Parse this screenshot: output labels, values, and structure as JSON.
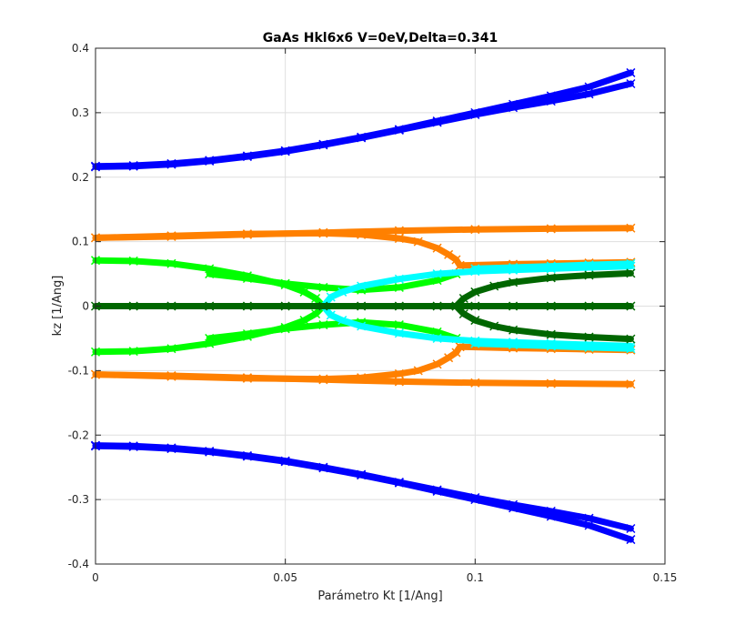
{
  "chart_data": {
    "type": "scatter",
    "title": "GaAs Hkl6x6 V=0eV,Delta=0.341",
    "xlabel": "Parámetro Kt [1/Ang]",
    "ylabel": "kz [1/Ang]",
    "xlim": [
      0,
      0.15
    ],
    "ylim": [
      -0.4,
      0.4
    ],
    "xticks": [
      0,
      0.05,
      0.1,
      0.15
    ],
    "xtick_labels": [
      "0",
      "0.05",
      "0.1",
      "0.15"
    ],
    "yticks": [
      -0.4,
      -0.3,
      -0.2,
      -0.1,
      0,
      0.1,
      0.2,
      0.3,
      0.4
    ],
    "ytick_labels": [
      "-0.4",
      "-0.3",
      "-0.2",
      "-0.1",
      "0",
      "0.1",
      "0.2",
      "0.3",
      "0.4"
    ],
    "grid": true,
    "marker": "x",
    "series": [
      {
        "color": "#0000ff",
        "x": [
          0,
          0.01,
          0.02,
          0.03,
          0.04,
          0.05,
          0.06,
          0.07,
          0.08,
          0.09,
          0.1,
          0.11,
          0.12,
          0.13,
          0.141
        ],
        "y": [
          0.217,
          0.218,
          0.221,
          0.226,
          0.233,
          0.241,
          0.251,
          0.262,
          0.274,
          0.287,
          0.3,
          0.313,
          0.326,
          0.34,
          0.362
        ]
      },
      {
        "color": "#0000ff",
        "x": [
          0,
          0.01,
          0.02,
          0.03,
          0.04,
          0.05,
          0.06,
          0.07,
          0.08,
          0.09,
          0.1,
          0.11,
          0.12,
          0.13,
          0.141
        ],
        "y": [
          0.216,
          0.217,
          0.22,
          0.225,
          0.232,
          0.24,
          0.25,
          0.261,
          0.273,
          0.285,
          0.297,
          0.308,
          0.318,
          0.329,
          0.345
        ]
      },
      {
        "color": "#0000ff",
        "x": [
          0,
          0.01,
          0.02,
          0.03,
          0.04,
          0.05,
          0.06,
          0.07,
          0.08,
          0.09,
          0.1,
          0.11,
          0.12,
          0.13,
          0.141
        ],
        "y": [
          -0.216,
          -0.217,
          -0.22,
          -0.225,
          -0.232,
          -0.24,
          -0.25,
          -0.261,
          -0.273,
          -0.285,
          -0.297,
          -0.308,
          -0.318,
          -0.329,
          -0.345
        ]
      },
      {
        "color": "#0000ff",
        "x": [
          0,
          0.01,
          0.02,
          0.03,
          0.04,
          0.05,
          0.06,
          0.07,
          0.08,
          0.09,
          0.1,
          0.11,
          0.12,
          0.13,
          0.141
        ],
        "y": [
          -0.217,
          -0.218,
          -0.221,
          -0.226,
          -0.233,
          -0.241,
          -0.251,
          -0.262,
          -0.274,
          -0.287,
          -0.3,
          -0.313,
          -0.326,
          -0.34,
          -0.362
        ]
      },
      {
        "color": "#ff8000",
        "x": [
          0,
          0.02,
          0.04,
          0.06,
          0.08,
          0.1,
          0.12,
          0.141
        ],
        "y": [
          0.106,
          0.108,
          0.111,
          0.114,
          0.117,
          0.119,
          0.12,
          0.121
        ]
      },
      {
        "color": "#ff8000",
        "x": [
          0,
          0.02,
          0.04,
          0.06,
          0.07,
          0.08,
          0.085,
          0.09,
          0.093,
          0.095,
          0.096
        ],
        "y": [
          0.106,
          0.109,
          0.112,
          0.113,
          0.111,
          0.105,
          0.1,
          0.09,
          0.08,
          0.072,
          0.063
        ]
      },
      {
        "color": "#ff8000",
        "x": [
          0.096,
          0.11,
          0.12,
          0.13,
          0.141
        ],
        "y": [
          0.063,
          0.065,
          0.066,
          0.067,
          0.068
        ]
      },
      {
        "color": "#ff8000",
        "x": [
          0,
          0.02,
          0.04,
          0.06,
          0.08,
          0.1,
          0.12,
          0.141
        ],
        "y": [
          -0.106,
          -0.108,
          -0.111,
          -0.114,
          -0.117,
          -0.119,
          -0.12,
          -0.121
        ]
      },
      {
        "color": "#ff8000",
        "x": [
          0,
          0.02,
          0.04,
          0.06,
          0.07,
          0.08,
          0.085,
          0.09,
          0.093,
          0.095,
          0.096
        ],
        "y": [
          -0.106,
          -0.109,
          -0.112,
          -0.113,
          -0.111,
          -0.105,
          -0.1,
          -0.09,
          -0.08,
          -0.072,
          -0.063
        ]
      },
      {
        "color": "#ff8000",
        "x": [
          0.096,
          0.11,
          0.12,
          0.13,
          0.141
        ],
        "y": [
          -0.063,
          -0.065,
          -0.066,
          -0.067,
          -0.068
        ]
      },
      {
        "color": "#00ff00",
        "x": [
          0,
          0.01,
          0.02,
          0.03,
          0.04,
          0.05,
          0.055,
          0.058,
          0.06
        ],
        "y": [
          0.071,
          0.07,
          0.066,
          0.058,
          0.047,
          0.033,
          0.022,
          0.012,
          0.0
        ]
      },
      {
        "color": "#00ff00",
        "x": [
          0,
          0.01,
          0.02,
          0.03,
          0.04,
          0.05,
          0.055,
          0.058,
          0.06
        ],
        "y": [
          -0.071,
          -0.07,
          -0.066,
          -0.058,
          -0.047,
          -0.033,
          -0.022,
          -0.012,
          0.0
        ]
      },
      {
        "color": "#00ff00",
        "x": [
          0.03,
          0.04,
          0.05,
          0.06,
          0.07,
          0.08,
          0.09,
          0.095
        ],
        "y": [
          0.05,
          0.043,
          0.035,
          0.029,
          0.025,
          0.029,
          0.04,
          0.05
        ]
      },
      {
        "color": "#00ff00",
        "x": [
          0.03,
          0.04,
          0.05,
          0.06,
          0.07,
          0.08,
          0.09,
          0.095
        ],
        "y": [
          -0.05,
          -0.043,
          -0.035,
          -0.029,
          -0.025,
          -0.029,
          -0.04,
          -0.05
        ]
      },
      {
        "color": "#00ffff",
        "x": [
          0.06,
          0.062,
          0.065,
          0.07,
          0.08,
          0.09,
          0.1,
          0.11,
          0.12,
          0.13,
          0.141
        ],
        "y": [
          0.0,
          0.014,
          0.022,
          0.031,
          0.042,
          0.05,
          0.054,
          0.056,
          0.058,
          0.06,
          0.062
        ]
      },
      {
        "color": "#00ffff",
        "x": [
          0.06,
          0.062,
          0.065,
          0.07,
          0.08,
          0.09,
          0.1,
          0.11,
          0.12,
          0.13,
          0.141
        ],
        "y": [
          0.0,
          -0.014,
          -0.022,
          -0.031,
          -0.042,
          -0.05,
          -0.054,
          -0.056,
          -0.058,
          -0.06,
          -0.062
        ]
      },
      {
        "color": "#00ffff",
        "x": [
          0.1,
          0.11,
          0.12,
          0.13,
          0.141
        ],
        "y": [
          0.058,
          0.06,
          0.062,
          0.064,
          0.066
        ]
      },
      {
        "color": "#00ffff",
        "x": [
          0.1,
          0.11,
          0.12,
          0.13,
          0.141
        ],
        "y": [
          -0.058,
          -0.06,
          -0.062,
          -0.064,
          -0.066
        ]
      },
      {
        "color": "#006600",
        "x": [
          0,
          0.01,
          0.02,
          0.03,
          0.04,
          0.05,
          0.06,
          0.07,
          0.08,
          0.09,
          0.1,
          0.11,
          0.12,
          0.13,
          0.141
        ],
        "y": [
          0,
          0,
          0,
          0,
          0,
          0,
          0,
          0,
          0,
          0,
          0,
          0,
          0,
          0,
          0
        ]
      },
      {
        "color": "#006600",
        "x": [
          0.095,
          0.097,
          0.1,
          0.105,
          0.11,
          0.12,
          0.13,
          0.141
        ],
        "y": [
          0.0,
          0.012,
          0.022,
          0.031,
          0.037,
          0.044,
          0.048,
          0.051
        ]
      },
      {
        "color": "#006600",
        "x": [
          0.095,
          0.097,
          0.1,
          0.105,
          0.11,
          0.12,
          0.13,
          0.141
        ],
        "y": [
          0.0,
          -0.012,
          -0.022,
          -0.031,
          -0.037,
          -0.044,
          -0.048,
          -0.051
        ]
      }
    ]
  }
}
